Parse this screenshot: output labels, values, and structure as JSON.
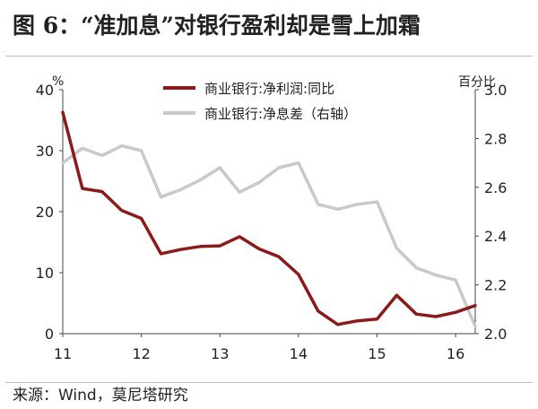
{
  "title": "图 6：“准加息”对银行盈利却是雪上加霜",
  "source": "来源：Wind，莫尼塔研究",
  "chart_data": {
    "type": "line",
    "left_unit": "%",
    "right_unit": "百分比",
    "x_ticks": [
      "11",
      "12",
      "13",
      "14",
      "15",
      "16"
    ],
    "x": [
      11.0,
      11.25,
      11.5,
      11.75,
      12.0,
      12.25,
      12.5,
      12.75,
      13.0,
      13.25,
      13.5,
      13.75,
      14.0,
      14.25,
      14.5,
      14.75,
      15.0,
      15.25,
      15.5,
      15.75,
      16.0,
      16.25
    ],
    "xlim": [
      11.0,
      16.25
    ],
    "ylim_left": [
      0,
      40
    ],
    "yticks_left": [
      0,
      10,
      20,
      30,
      40
    ],
    "ylim_right": [
      2.0,
      3.0
    ],
    "yticks_right": [
      "2.0",
      "2.2",
      "2.4",
      "2.6",
      "2.8",
      "3.0"
    ],
    "series": [
      {
        "name": "商业银行:净利润:同比",
        "axis": "left",
        "color": "#8b1a1a",
        "values": [
          36.3,
          23.8,
          23.3,
          20.2,
          18.9,
          13.1,
          13.8,
          14.3,
          14.4,
          15.9,
          13.9,
          12.6,
          9.7,
          3.7,
          1.5,
          2.1,
          2.4,
          6.3,
          3.2,
          2.8,
          3.5,
          4.6
        ]
      },
      {
        "name": "商业银行:净息差（右轴）",
        "axis": "right",
        "color": "#c9c9c9",
        "values": [
          2.7,
          2.76,
          2.73,
          2.77,
          2.75,
          2.56,
          2.59,
          2.63,
          2.68,
          2.58,
          2.62,
          2.68,
          2.7,
          2.53,
          2.51,
          2.53,
          2.54,
          2.35,
          2.27,
          2.24,
          2.22,
          2.03
        ]
      }
    ],
    "legend_position": "top-center",
    "grid": false
  }
}
